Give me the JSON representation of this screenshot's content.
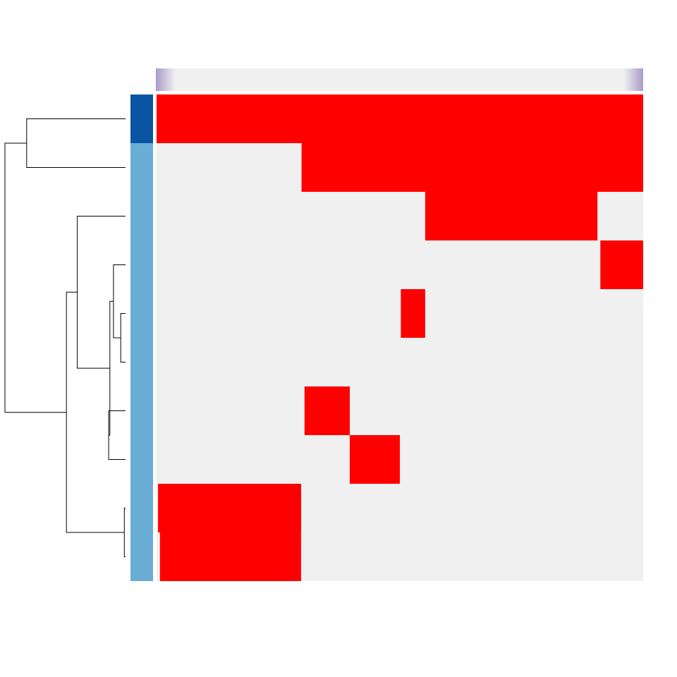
{
  "chart_data": {
    "type": "heatmap",
    "title": "",
    "xlabel": "",
    "ylabel": "",
    "legend": "none",
    "row_count": 10,
    "column_resolution": 200,
    "colors": {
      "on": "#ff0000",
      "off": "#f0f0f0",
      "group_dark": "#0a55a3",
      "group_light": "#6aaed6",
      "top_gradient_edge": "#a99bc9",
      "top_gradient_mid": "#f0f0f0",
      "dendrogram_line": "#000000"
    },
    "row_groups": [
      "dark",
      "light",
      "light",
      "light",
      "light",
      "light",
      "light",
      "light",
      "light",
      "light"
    ],
    "rows": [
      {
        "on_spans": [
          [
            0.0,
            1.0
          ]
        ]
      },
      {
        "on_spans": [
          [
            0.298,
            1.0
          ]
        ]
      },
      {
        "on_spans": [
          [
            0.552,
            0.906
          ]
        ]
      },
      {
        "on_spans": [
          [
            0.912,
            1.0
          ]
        ]
      },
      {
        "on_spans": [
          [
            0.502,
            0.552
          ]
        ]
      },
      {
        "on_spans": []
      },
      {
        "on_spans": [
          [
            0.304,
            0.397
          ]
        ]
      },
      {
        "on_spans": [
          [
            0.397,
            0.5
          ]
        ]
      },
      {
        "on_spans": [
          [
            0.003,
            0.297
          ]
        ]
      },
      {
        "on_spans": [
          [
            0.007,
            0.297
          ]
        ]
      }
    ],
    "dendrogram": {
      "leaf_order": [
        0,
        1,
        2,
        3,
        4,
        5,
        6,
        7,
        8,
        9
      ],
      "merges": [
        {
          "left": "r0",
          "right": "r1",
          "height": 0.82
        },
        {
          "left": "r4",
          "right": "r5",
          "height": 0.04
        },
        {
          "left": "r3",
          "right": "m1",
          "height": 0.1
        },
        {
          "left": "r6",
          "right": "r7",
          "height": 0.14
        },
        {
          "left": "m2",
          "right": "m3",
          "height": 0.13
        },
        {
          "left": "r2",
          "right": "m4",
          "height": 0.4
        },
        {
          "left": "r8",
          "right": "r9",
          "height": 0.01
        },
        {
          "left": "m5",
          "right": "m6",
          "height": 0.49
        },
        {
          "left": "m0",
          "right": "m7",
          "height": 1.0
        }
      ]
    }
  }
}
